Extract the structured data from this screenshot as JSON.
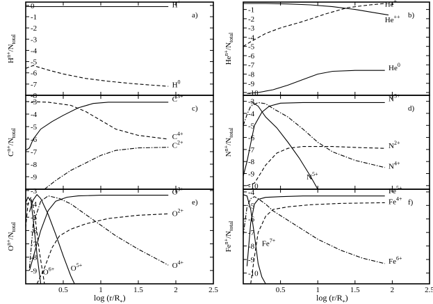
{
  "x_axis_label": "log (r/R",
  "x_axis_label_sub": "*",
  "x_axis_label_close": ")",
  "chart_data": [
    {
      "type": "line",
      "panel": "a)",
      "element": "H",
      "ylabel": "H / N",
      "ylabel_parts": {
        "main": "H",
        "sup": "n+",
        "mid": "/N",
        "sub": "total"
      },
      "xlim": [
        0,
        2.5
      ],
      "ylim": [
        -8,
        0.3
      ],
      "xticks": [
        0.5,
        1,
        1.5,
        2,
        2.5
      ],
      "yticks": [
        0,
        -1,
        -2,
        -3,
        -4,
        -5,
        -6,
        -7,
        -8
      ],
      "series": [
        {
          "base": "H",
          "sup": "+",
          "style": "solid",
          "label_at": [
            1.95,
            -0.15
          ],
          "x": [
            0,
            0.5,
            1,
            1.5,
            1.9
          ],
          "y": [
            -0.1,
            -0.1,
            -0.1,
            -0.1,
            -0.1
          ]
        },
        {
          "base": "H",
          "sup": "0",
          "style": "dashed",
          "label_at": [
            1.95,
            -7.3
          ],
          "x": [
            0,
            0.1,
            0.3,
            0.5,
            0.8,
            1.1,
            1.4,
            1.7,
            1.9
          ],
          "y": [
            -5.6,
            -5.35,
            -5.75,
            -6.1,
            -6.5,
            -6.75,
            -6.95,
            -7.1,
            -7.2
          ]
        }
      ]
    },
    {
      "type": "line",
      "panel": "b)",
      "element": "He",
      "ylabel_parts": {
        "main": "He",
        "sup": "n+",
        "mid": "/N",
        "sub": "total"
      },
      "xlim": [
        0,
        2.5
      ],
      "ylim": [
        -10.3,
        -0.2
      ],
      "xticks": [
        0.5,
        1,
        1.5,
        2,
        2.5
      ],
      "yticks": [
        -1,
        -2,
        -3,
        -4,
        -5,
        -6,
        -7,
        -8,
        -9,
        -10
      ],
      "series": [
        {
          "base": "He",
          "sup": "+",
          "style": "dashed",
          "label_at": [
            1.9,
            -0.7
          ],
          "x": [
            0,
            0.1,
            0.3,
            0.5,
            0.8,
            1.1,
            1.4,
            1.7,
            1.9
          ],
          "y": [
            -5.0,
            -4.5,
            -3.6,
            -3.0,
            -2.3,
            -1.5,
            -0.8,
            -0.5,
            -0.35
          ]
        },
        {
          "base": "He",
          "sup": "++",
          "style": "solid",
          "label_at": [
            1.9,
            -2.4
          ],
          "x": [
            0,
            0.3,
            0.6,
            0.9,
            1.2,
            1.5,
            1.8,
            1.95
          ],
          "y": [
            -0.35,
            -0.35,
            -0.4,
            -0.5,
            -0.7,
            -1.0,
            -1.4,
            -1.6
          ]
        },
        {
          "base": "He",
          "sup": "0",
          "style": "solid",
          "label_at": [
            1.95,
            -7.6
          ],
          "x": [
            0.05,
            0.2,
            0.4,
            0.6,
            0.8,
            1.0,
            1.2,
            1.5,
            1.9
          ],
          "y": [
            -10.1,
            -10.0,
            -9.7,
            -9.2,
            -8.6,
            -8.0,
            -7.7,
            -7.6,
            -7.6
          ]
        }
      ]
    },
    {
      "type": "line",
      "panel": "c)",
      "element": "C",
      "ylabel_parts": {
        "main": "C",
        "sup": "n+",
        "mid": "/N",
        "sub": "total"
      },
      "xlim": [
        0,
        2.5
      ],
      "ylim": [
        -10,
        -2.5
      ],
      "xticks": [
        0.5,
        1,
        1.5,
        2,
        2.5
      ],
      "yticks": [
        -3,
        -4,
        -5,
        -6,
        -7,
        -8,
        -9
      ],
      "series": [
        {
          "base": "C",
          "sup": "3+",
          "style": "solid",
          "label_at": [
            1.95,
            -3.0
          ],
          "x": [
            0,
            0.05,
            0.1,
            0.2,
            0.35,
            0.5,
            0.7,
            0.9,
            1.1,
            1.4,
            1.9
          ],
          "y": [
            -6.9,
            -6.7,
            -6.0,
            -5.2,
            -4.6,
            -4.1,
            -3.5,
            -3.15,
            -3.05,
            -3.05,
            -3.05
          ]
        },
        {
          "base": "C",
          "sup": "4+",
          "style": "dashed",
          "label_at": [
            1.95,
            -6.0
          ],
          "x": [
            0,
            0.3,
            0.6,
            0.8,
            1.0,
            1.2,
            1.5,
            1.9
          ],
          "y": [
            -3.0,
            -3.05,
            -3.3,
            -3.8,
            -4.5,
            -5.2,
            -5.7,
            -6.0
          ]
        },
        {
          "base": "C",
          "sup": "2+",
          "style": "dashdot",
          "label_at": [
            1.95,
            -6.7
          ],
          "x": [
            0.25,
            0.4,
            0.6,
            0.8,
            1.0,
            1.2,
            1.5,
            1.9
          ],
          "y": [
            -10.0,
            -9.3,
            -8.5,
            -7.9,
            -7.3,
            -6.9,
            -6.7,
            -6.65
          ]
        }
      ]
    },
    {
      "type": "line",
      "panel": "d)",
      "element": "N",
      "ylabel_parts": {
        "main": "N",
        "sup": "n+",
        "mid": "/N",
        "sub": "total"
      },
      "xlim": [
        0,
        2.5
      ],
      "ylim": [
        -10.3,
        -2.5
      ],
      "xticks": [
        0.5,
        1,
        1.5,
        2,
        2.5
      ],
      "yticks": [
        -3,
        -4,
        -5,
        -6,
        -7,
        -8,
        -9,
        -10
      ],
      "series": [
        {
          "base": "N",
          "sup": "3+",
          "style": "solid",
          "label_at": [
            1.95,
            -3.0
          ],
          "x": [
            0,
            0.05,
            0.1,
            0.15,
            0.25,
            0.35,
            0.5,
            0.8,
            1.2,
            1.9
          ],
          "y": [
            -9.2,
            -8.0,
            -6.5,
            -5.0,
            -3.9,
            -3.4,
            -3.15,
            -3.1,
            -3.1,
            -3.1
          ]
        },
        {
          "base": "N",
          "sup": "2+",
          "style": "dashed",
          "label_at": [
            1.95,
            -6.9
          ],
          "x": [
            0.05,
            0.15,
            0.3,
            0.45,
            0.6,
            0.8,
            1.2,
            1.6,
            1.9
          ],
          "y": [
            -10.0,
            -9.8,
            -8.3,
            -7.3,
            -6.9,
            -6.75,
            -6.75,
            -6.85,
            -6.9
          ]
        },
        {
          "base": "N",
          "sup": "4+",
          "style": "dashdot",
          "label_at": [
            1.95,
            -8.6
          ],
          "x": [
            0,
            0.05,
            0.1,
            0.2,
            0.3,
            0.4,
            0.6,
            0.8,
            1.0,
            1.2,
            1.5,
            1.9
          ],
          "y": [
            -5.0,
            -4.1,
            -3.4,
            -3.1,
            -3.2,
            -3.6,
            -4.3,
            -5.3,
            -6.4,
            -7.2,
            -7.9,
            -8.5
          ]
        },
        {
          "base": "N",
          "sup": "5+",
          "style": "solid",
          "label_at": [
            0.85,
            -9.5
          ],
          "x": [
            0.1,
            0.2,
            0.3,
            0.45,
            0.6,
            0.75,
            0.9,
            1.0
          ],
          "y": [
            -3.0,
            -3.4,
            -4.3,
            -5.2,
            -6.4,
            -7.7,
            -9.2,
            -10.3
          ]
        }
      ]
    },
    {
      "type": "line",
      "panel": "e)",
      "element": "O",
      "ylabel_parts": {
        "main": "O",
        "sup": "n+",
        "mid": "/N",
        "sub": "total"
      },
      "xlim": [
        0,
        2.5
      ],
      "ylim": [
        -10,
        -2.9
      ],
      "xticks": [
        0.5,
        1,
        1.5,
        2,
        2.5
      ],
      "xticklabels": [
        "0.5",
        "1",
        "1.5",
        "2",
        "2.5"
      ],
      "yticks": [
        -3,
        -4,
        -5,
        -6,
        -7,
        -8,
        -9
      ],
      "series": [
        {
          "base": "O",
          "sup": "3+",
          "style": "solid",
          "label_at": [
            1.95,
            -3.3
          ],
          "x": [
            0.05,
            0.1,
            0.2,
            0.3,
            0.4,
            0.55,
            0.7,
            1.0,
            1.4,
            1.9
          ],
          "y": [
            -9.0,
            -8.0,
            -6.0,
            -4.5,
            -3.8,
            -3.5,
            -3.4,
            -3.35,
            -3.35,
            -3.35
          ]
        },
        {
          "base": "O",
          "sup": "2+",
          "style": "dashed",
          "label_at": [
            1.95,
            -4.9
          ],
          "x": [
            0.15,
            0.25,
            0.35,
            0.45,
            0.6,
            0.8,
            1.1,
            1.5,
            1.9
          ],
          "y": [
            -10.0,
            -8.8,
            -7.3,
            -6.4,
            -5.9,
            -5.5,
            -5.1,
            -4.85,
            -4.75
          ]
        },
        {
          "base": "O",
          "sup": "4+",
          "style": "dashdot",
          "label_at": [
            1.95,
            -8.8
          ],
          "x": [
            0.05,
            0.1,
            0.2,
            0.3,
            0.45,
            0.6,
            0.8,
            1.0,
            1.2,
            1.5,
            1.8,
            1.9
          ],
          "y": [
            -8.8,
            -5.5,
            -3.8,
            -3.4,
            -3.6,
            -4.0,
            -4.8,
            -5.6,
            -6.4,
            -7.4,
            -8.3,
            -8.6
          ]
        },
        {
          "base": "O",
          "sup": "5+",
          "style": "solid",
          "label_at": [
            0.6,
            -9.0
          ],
          "x": [
            0.05,
            0.1,
            0.15,
            0.2,
            0.3,
            0.4,
            0.5,
            0.6,
            0.65
          ],
          "y": [
            -4.6,
            -3.7,
            -3.3,
            -3.6,
            -4.8,
            -6.3,
            -7.9,
            -9.4,
            -10.0
          ]
        },
        {
          "base": "O",
          "sup": "6+",
          "style": "dashed",
          "label_at": [
            0.23,
            -9.3
          ],
          "x": [
            0,
            0.03,
            0.07,
            0.12,
            0.18,
            0.25
          ],
          "y": [
            -5.8,
            -4.0,
            -3.5,
            -4.8,
            -7.5,
            -10.0
          ]
        },
        {
          "base": "O",
          "sup": "",
          "style": "solid",
          "label_at": null,
          "x": [
            0,
            0.03,
            0.07,
            0.1,
            0.15,
            0.2
          ],
          "y": [
            -3.9,
            -3.5,
            -3.8,
            -5.2,
            -7.8,
            -10.0
          ]
        }
      ]
    },
    {
      "type": "line",
      "panel": "f)",
      "element": "Fe",
      "ylabel_parts": {
        "main": "Fe",
        "sup": "n+",
        "mid": "/N",
        "sub": "total"
      },
      "xlim": [
        0,
        2.5
      ],
      "ylim": [
        -10.8,
        -3.8
      ],
      "xticks": [
        0.5,
        1,
        1.5,
        2,
        2.5
      ],
      "xticklabels": [
        "0.5",
        "1",
        "1.5",
        "2",
        "2.5"
      ],
      "yticks": [
        -4,
        -5,
        -6,
        -7,
        -8,
        -9,
        -10
      ],
      "series": [
        {
          "base": "Fe",
          "sup": "5+",
          "style": "solid",
          "label_at": [
            1.95,
            -4.1
          ],
          "x": [
            0.05,
            0.1,
            0.15,
            0.2,
            0.3,
            0.5,
            0.8,
            1.2,
            1.9
          ],
          "y": [
            -9.5,
            -6.3,
            -4.9,
            -4.55,
            -4.4,
            -4.35,
            -4.3,
            -4.3,
            -4.3
          ]
        },
        {
          "base": "Fe",
          "sup": "4+",
          "style": "dashed",
          "label_at": [
            1.95,
            -4.9
          ],
          "x": [
            0.1,
            0.15,
            0.2,
            0.3,
            0.4,
            0.6,
            0.9,
            1.3,
            1.9
          ],
          "y": [
            -10.8,
            -8.8,
            -7.0,
            -5.8,
            -5.3,
            -5.1,
            -4.95,
            -4.85,
            -4.8
          ]
        },
        {
          "base": "Fe",
          "sup": "6+",
          "style": "dashdot",
          "label_at": [
            1.95,
            -9.3
          ],
          "x": [
            0,
            0.05,
            0.1,
            0.15,
            0.2,
            0.3,
            0.4,
            0.6,
            0.8,
            1.0,
            1.3,
            1.6,
            1.9
          ],
          "y": [
            -7.2,
            -5.1,
            -4.5,
            -4.35,
            -4.5,
            -4.9,
            -5.4,
            -6.1,
            -6.8,
            -7.5,
            -8.3,
            -8.9,
            -9.3
          ]
        },
        {
          "base": "Fe",
          "sup": "7+",
          "style": "solid",
          "label_at": [
            0.25,
            -8.0
          ],
          "x": [
            0,
            0.05,
            0.1,
            0.15,
            0.2,
            0.25,
            0.3
          ],
          "y": [
            -4.2,
            -4.3,
            -5.3,
            -7.2,
            -9.3,
            -10.3,
            -10.8
          ]
        }
      ]
    }
  ]
}
